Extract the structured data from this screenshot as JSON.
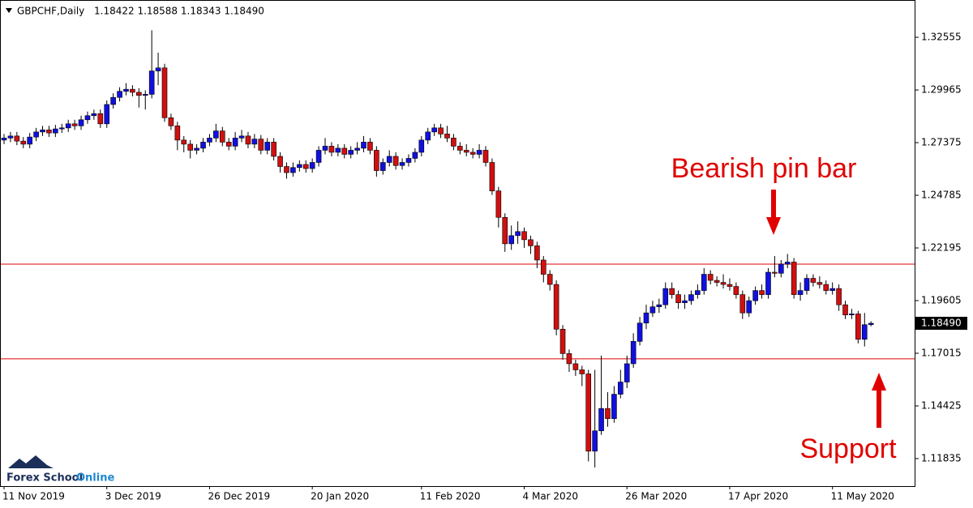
{
  "chart_data": {
    "type": "candlestick",
    "title": "GBPCHF,Daily",
    "subtitle": "1.18422 1.18588 1.18343 1.18490",
    "up_color": "#1010e0",
    "down_color": "#d01010",
    "categories": [
      "11 Nov 2019",
      null,
      null,
      null,
      null,
      null,
      null,
      null,
      null,
      null,
      null,
      null,
      null,
      null,
      null,
      null,
      "3 Dec 2019",
      null,
      null,
      null,
      null,
      null,
      null,
      null,
      null,
      null,
      null,
      null,
      null,
      null,
      null,
      null,
      "26 Dec 2019",
      null,
      null,
      null,
      null,
      null,
      null,
      null,
      null,
      null,
      null,
      null,
      null,
      null,
      null,
      null,
      "20 Jan 2020",
      null,
      null,
      null,
      null,
      null,
      null,
      null,
      null,
      null,
      null,
      null,
      null,
      null,
      null,
      null,
      null,
      "11 Feb 2020",
      null,
      null,
      null,
      null,
      null,
      null,
      null,
      null,
      null,
      null,
      null,
      null,
      null,
      null,
      null,
      "4 Mar 2020",
      null,
      null,
      null,
      null,
      null,
      null,
      null,
      null,
      null,
      null,
      null,
      null,
      null,
      null,
      null,
      "26 Mar 2020",
      null,
      null,
      null,
      null,
      null,
      null,
      null,
      null,
      null,
      null,
      null,
      null,
      null,
      null,
      null,
      "17 Apr 2020",
      null,
      null,
      null,
      null,
      null,
      null,
      null,
      null,
      null,
      null,
      null,
      null,
      null,
      null,
      null,
      "11 May 2020",
      null,
      null,
      null,
      null,
      null,
      null
    ],
    "open": [
      1.275,
      1.276,
      1.277,
      1.2745,
      1.273,
      1.2765,
      1.279,
      1.28,
      1.2785,
      1.2805,
      1.281,
      1.283,
      1.282,
      1.285,
      1.287,
      1.288,
      1.283,
      1.2925,
      1.296,
      1.299,
      1.3,
      1.2985,
      1.297,
      1.2975,
      1.309,
      1.3105,
      1.286,
      1.282,
      1.275,
      1.273,
      1.27,
      1.271,
      1.274,
      1.276,
      1.2795,
      1.274,
      1.272,
      1.276,
      1.277,
      1.273,
      1.2755,
      1.27,
      1.274,
      1.267,
      1.262,
      1.259,
      1.2615,
      1.263,
      1.261,
      1.264,
      1.27,
      1.272,
      1.269,
      1.271,
      1.268,
      1.27,
      1.271,
      1.274,
      1.27,
      1.26,
      1.264,
      1.267,
      1.2625,
      1.264,
      1.266,
      1.269,
      1.275,
      1.279,
      1.281,
      1.278,
      1.276,
      1.272,
      1.27,
      1.269,
      1.268,
      1.27,
      1.264,
      1.25,
      1.237,
      1.224,
      1.228,
      1.23,
      1.226,
      1.223,
      1.216,
      1.209,
      1.204,
      1.182,
      1.17,
      1.165,
      1.162,
      1.16,
      1.122,
      1.132,
      1.143,
      1.138,
      1.15,
      1.156,
      1.165,
      1.176,
      1.185,
      1.19,
      1.193,
      1.194,
      1.202,
      1.199,
      1.195,
      1.196,
      1.199,
      1.201,
      1.209,
      1.206,
      1.205,
      1.204,
      1.203,
      1.199,
      1.19,
      1.196,
      1.201,
      1.199,
      1.21,
      1.2095,
      1.214,
      1.215,
      1.199,
      1.201,
      1.207,
      1.205,
      1.204,
      1.201,
      1.202,
      1.194,
      1.189,
      1.1895,
      1.177,
      1.18422
    ],
    "high": [
      1.278,
      1.279,
      1.279,
      1.2765,
      1.2785,
      1.281,
      1.282,
      1.282,
      1.2825,
      1.283,
      1.285,
      1.285,
      1.287,
      1.289,
      1.29,
      1.29,
      1.2945,
      1.298,
      1.301,
      1.303,
      1.302,
      1.3005,
      1.2995,
      1.329,
      1.318,
      1.3125,
      1.288,
      1.284,
      1.277,
      1.275,
      1.273,
      1.276,
      1.278,
      1.283,
      1.2815,
      1.276,
      1.279,
      1.28,
      1.279,
      1.278,
      1.2775,
      1.276,
      1.276,
      1.269,
      1.264,
      1.264,
      1.265,
      1.265,
      1.266,
      1.272,
      1.276,
      1.274,
      1.273,
      1.273,
      1.272,
      1.274,
      1.277,
      1.276,
      1.272,
      1.266,
      1.27,
      1.269,
      1.266,
      1.268,
      1.271,
      1.277,
      1.281,
      1.283,
      1.283,
      1.282,
      1.278,
      1.274,
      1.273,
      1.271,
      1.273,
      1.272,
      1.266,
      1.252,
      1.239,
      1.233,
      1.235,
      1.232,
      1.228,
      1.225,
      1.218,
      1.211,
      1.206,
      1.184,
      1.172,
      1.167,
      1.164,
      1.162,
      1.162,
      1.169,
      1.151,
      1.154,
      1.162,
      1.169,
      1.18,
      1.188,
      1.194,
      1.196,
      1.197,
      1.205,
      1.205,
      1.201,
      1.199,
      1.201,
      1.204,
      1.212,
      1.211,
      1.208,
      1.209,
      1.207,
      1.205,
      1.201,
      1.198,
      1.203,
      1.204,
      1.212,
      1.218,
      1.216,
      1.219,
      1.217,
      1.205,
      1.209,
      1.209,
      1.208,
      1.206,
      1.205,
      1.204,
      1.196,
      1.192,
      1.191,
      1.19,
      1.18588
    ],
    "low": [
      1.273,
      1.274,
      1.2725,
      1.271,
      1.271,
      1.2745,
      1.277,
      1.2765,
      1.2765,
      1.2785,
      1.279,
      1.28,
      1.28,
      1.283,
      1.285,
      1.281,
      1.281,
      1.2905,
      1.294,
      1.297,
      1.2965,
      1.291,
      1.29,
      1.2955,
      1.302,
      1.284,
      1.28,
      1.27,
      1.269,
      1.266,
      1.268,
      1.269,
      1.272,
      1.274,
      1.272,
      1.27,
      1.27,
      1.274,
      1.271,
      1.271,
      1.268,
      1.268,
      1.265,
      1.259,
      1.256,
      1.257,
      1.2595,
      1.259,
      1.259,
      1.262,
      1.268,
      1.267,
      1.267,
      1.266,
      1.266,
      1.268,
      1.269,
      1.268,
      1.257,
      1.258,
      1.262,
      1.2605,
      1.2605,
      1.262,
      1.264,
      1.267,
      1.273,
      1.277,
      1.276,
      1.274,
      1.27,
      1.268,
      1.267,
      1.266,
      1.266,
      1.262,
      1.248,
      1.232,
      1.22,
      1.221,
      1.224,
      1.222,
      1.219,
      1.212,
      1.205,
      1.201,
      1.179,
      1.167,
      1.161,
      1.159,
      1.154,
      1.117,
      1.114,
      1.13,
      1.134,
      1.136,
      1.148,
      1.153,
      1.163,
      1.174,
      1.182,
      1.188,
      1.19,
      1.192,
      1.197,
      1.192,
      1.192,
      1.194,
      1.197,
      1.199,
      1.204,
      1.203,
      1.202,
      1.201,
      1.197,
      1.187,
      1.188,
      1.194,
      1.197,
      1.197,
      1.2075,
      1.2075,
      1.212,
      1.197,
      1.196,
      1.199,
      1.203,
      1.202,
      1.199,
      1.199,
      1.191,
      1.187,
      1.187,
      1.175,
      1.1735,
      1.18343
    ],
    "close": [
      1.276,
      1.277,
      1.2745,
      1.273,
      1.2765,
      1.279,
      1.28,
      1.2785,
      1.2805,
      1.281,
      1.283,
      1.282,
      1.285,
      1.287,
      1.288,
      1.283,
      1.2925,
      1.296,
      1.299,
      1.3,
      1.2985,
      1.297,
      1.2975,
      1.309,
      1.3105,
      1.286,
      1.282,
      1.275,
      1.273,
      1.27,
      1.271,
      1.274,
      1.276,
      1.2795,
      1.274,
      1.272,
      1.276,
      1.277,
      1.273,
      1.2755,
      1.27,
      1.274,
      1.267,
      1.262,
      1.259,
      1.2615,
      1.263,
      1.261,
      1.264,
      1.27,
      1.272,
      1.269,
      1.271,
      1.268,
      1.27,
      1.271,
      1.274,
      1.27,
      1.26,
      1.264,
      1.267,
      1.2625,
      1.264,
      1.266,
      1.269,
      1.275,
      1.279,
      1.281,
      1.278,
      1.276,
      1.272,
      1.27,
      1.269,
      1.268,
      1.27,
      1.264,
      1.25,
      1.237,
      1.224,
      1.228,
      1.23,
      1.226,
      1.223,
      1.216,
      1.209,
      1.204,
      1.182,
      1.17,
      1.165,
      1.162,
      1.16,
      1.122,
      1.132,
      1.143,
      1.138,
      1.15,
      1.156,
      1.165,
      1.176,
      1.185,
      1.19,
      1.193,
      1.194,
      1.202,
      1.199,
      1.195,
      1.196,
      1.199,
      1.201,
      1.209,
      1.206,
      1.205,
      1.204,
      1.203,
      1.199,
      1.19,
      1.196,
      1.201,
      1.199,
      1.21,
      1.2095,
      1.214,
      1.215,
      1.199,
      1.201,
      1.207,
      1.205,
      1.204,
      1.201,
      1.202,
      1.194,
      1.189,
      1.1895,
      1.177,
      1.1842,
      1.1849
    ],
    "ylim": [
      1.1048,
      1.3439
    ],
    "yticks": [
      1.11835,
      1.14425,
      1.17015,
      1.19605,
      1.22195,
      1.24785,
      1.27375,
      1.29965,
      1.32555
    ],
    "price_label": {
      "value": 1.1849,
      "label": "1.18490"
    },
    "hlines": [
      1.214,
      1.1674
    ],
    "hline_color": "#e00000",
    "annotations": [
      {
        "text": "Bearish pin bar"
      },
      {
        "text": "Support"
      }
    ],
    "logo": {
      "brand": "Forex School",
      "suffix": "Online"
    }
  }
}
